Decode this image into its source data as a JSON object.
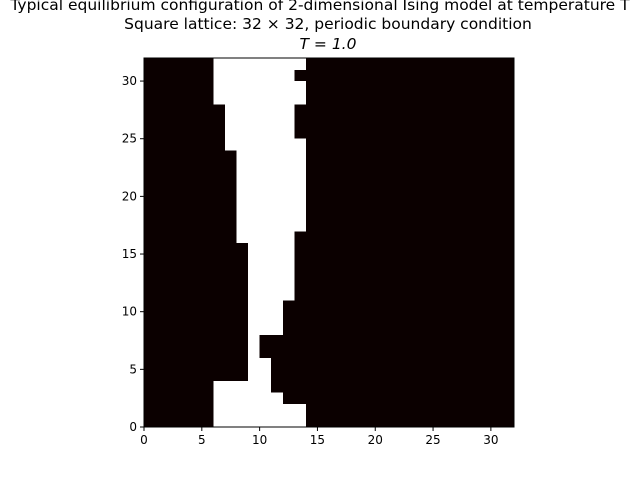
{
  "chart_data": {
    "type": "heatmap",
    "title_line1": "Typical equilibrium configuration of 2-dimensional Ising model at temperature T",
    "title_line2": "Square lattice: 32 × 32, periodic boundary condition",
    "title_line3": "T = 1.0",
    "xlim": [
      0,
      32
    ],
    "ylim": [
      0,
      32
    ],
    "xticks": [
      0,
      5,
      10,
      15,
      20,
      25,
      30
    ],
    "yticks": [
      0,
      5,
      10,
      15,
      20,
      25,
      30
    ],
    "colors": {
      "spin_down": "#0b0000",
      "spin_up": "#ffffff"
    },
    "white_intervals_by_row": [
      [
        6,
        14
      ],
      [
        6,
        14
      ],
      [
        6,
        12
      ],
      [
        6,
        11
      ],
      [
        9,
        11
      ],
      [
        9,
        11
      ],
      [
        9,
        10
      ],
      [
        9,
        10
      ],
      [
        9,
        12
      ],
      [
        9,
        12
      ],
      [
        9,
        12
      ],
      [
        9,
        13
      ],
      [
        9,
        13
      ],
      [
        9,
        13
      ],
      [
        9,
        13
      ],
      [
        9,
        13
      ],
      [
        8,
        13
      ],
      [
        8,
        14
      ],
      [
        8,
        14
      ],
      [
        8,
        14
      ],
      [
        8,
        14
      ],
      [
        8,
        14
      ],
      [
        8,
        14
      ],
      [
        8,
        14
      ],
      [
        7,
        14
      ],
      [
        7,
        13
      ],
      [
        7,
        13
      ],
      [
        7,
        13
      ],
      [
        6,
        14
      ],
      [
        6,
        14
      ],
      [
        6,
        13
      ],
      [
        6,
        14
      ]
    ]
  }
}
